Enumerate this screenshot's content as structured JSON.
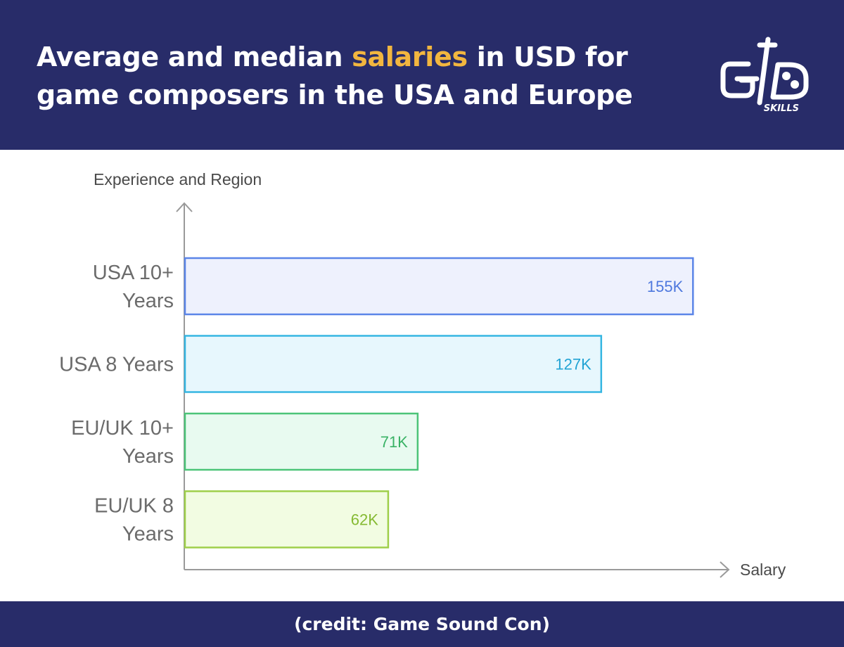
{
  "header": {
    "title_before": "Average and median ",
    "title_highlight": "salaries",
    "title_after": " in USD for game composers in the USA and Europe",
    "logo_text": "SKILLS",
    "logo_icon": "gd-skills-logo-icon"
  },
  "colors": {
    "header_bg": "#282c69",
    "highlight": "#f2b63f"
  },
  "chart_data": {
    "type": "bar",
    "orientation": "horizontal",
    "ylabel": "Experience and Region",
    "xlabel": "Salary",
    "categories": [
      [
        "USA 10+",
        "Years"
      ],
      [
        "USA 8 Years"
      ],
      [
        "EU/UK 10+",
        "Years"
      ],
      [
        "EU/UK 8",
        "Years"
      ]
    ],
    "values": [
      155,
      127,
      71,
      62
    ],
    "value_labels": [
      "155K",
      "127K",
      "71K",
      "62K"
    ],
    "unit": "K USD",
    "xlim": [
      0,
      170
    ],
    "grid": false,
    "bar_colors": [
      {
        "fill": "#eef1fd",
        "stroke": "#5b85e8",
        "text": "#4e78de"
      },
      {
        "fill": "#e7f7fd",
        "stroke": "#36b6e2",
        "text": "#22a3d4"
      },
      {
        "fill": "#e8faf0",
        "stroke": "#4cc478",
        "text": "#39b265"
      },
      {
        "fill": "#f2fce2",
        "stroke": "#9fcf4a",
        "text": "#86ba33"
      }
    ]
  },
  "footer": {
    "credit": "(credit: Game Sound Con)"
  }
}
